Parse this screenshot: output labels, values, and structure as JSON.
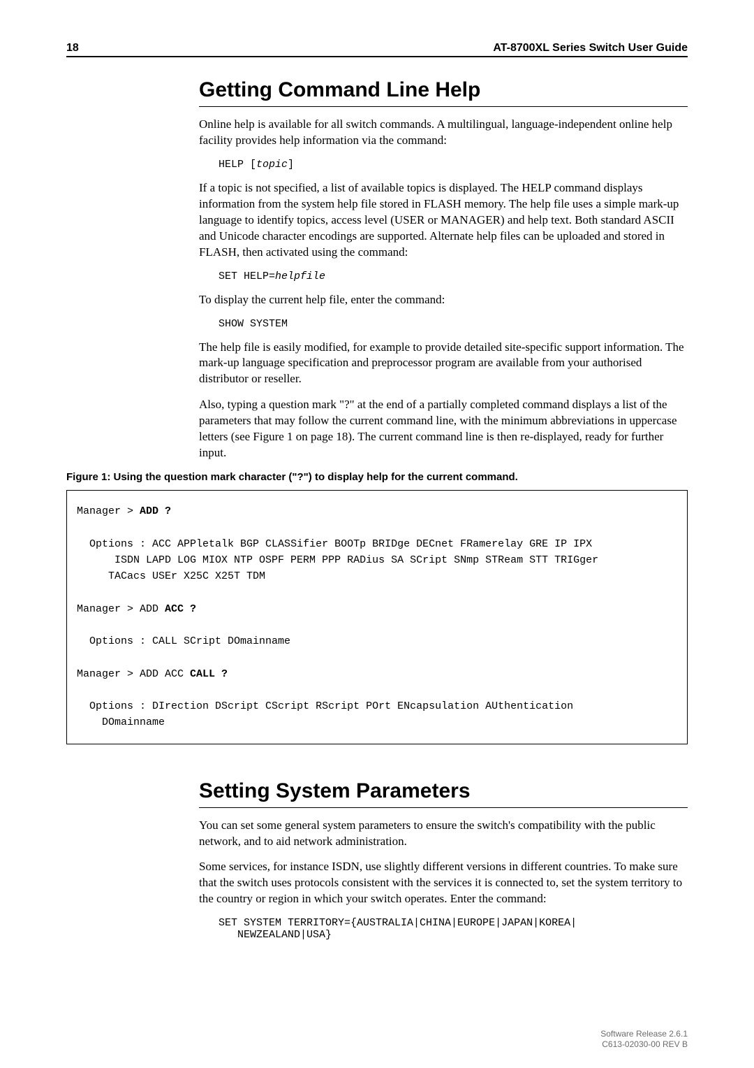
{
  "header": {
    "page_number": "18",
    "doc_title": "AT-8700XL Series Switch User Guide"
  },
  "section1": {
    "heading": "Getting Command Line Help",
    "p1": "Online help is available for all switch commands. A multilingual, language-independent online help facility provides help information via the command:",
    "code1_a": "HELP [",
    "code1_b": "topic",
    "code1_c": "]",
    "p2": "If a topic is not specified, a list of available topics is displayed. The HELP command displays information from the system help file stored in FLASH memory. The help file uses a simple mark-up language to identify topics, access level (USER or MANAGER) and help text. Both standard ASCII and Unicode character encodings are supported. Alternate help files can be uploaded and stored in FLASH, then activated using the command:",
    "code2_a": "SET HELP=",
    "code2_b": "helpfile",
    "p3": "To display the current help file, enter the command:",
    "code3": "SHOW SYSTEM",
    "p4": "The help file is easily modified, for example to provide detailed site-specific support information. The mark-up language specification and preprocessor program are available from your authorised distributor or reseller.",
    "p5": "Also, typing a question mark \"?\" at the end of a partially completed command displays a list of the parameters that may follow the current command line, with the minimum abbreviations in uppercase letters (see Figure 1 on page 18). The current command line is then re-displayed, ready for further input."
  },
  "figure": {
    "caption": "Figure 1: Using the question mark character (\"?\") to display help for the current command.",
    "line1a": "Manager > ",
    "line1b": "ADD ?",
    "opt1": "  Options : ACC APPletalk BGP CLASSifier BOOTp BRIDge DECnet FRamerelay GRE IP IPX\n      ISDN LAPD LOG MIOX NTP OSPF PERM PPP RADius SA SCript SNmp STReam STT TRIGger\n     TACacs USEr X25C X25T TDM",
    "line2a": "Manager > ADD ",
    "line2b": "ACC ?",
    "opt2": "  Options : CALL SCript DOmainname",
    "line3a": "Manager > ADD ACC ",
    "line3b": "CALL ?",
    "opt3": "  Options : DIrection DScript CScript RScript POrt ENcapsulation AUthentication\n    DOmainname"
  },
  "section2": {
    "heading": "Setting System Parameters",
    "p1": "You can set some general system parameters to ensure the switch's compatibility with the public network, and to aid network administration.",
    "p2": "Some services, for instance ISDN, use slightly different versions in different countries. To make sure that the switch uses protocols consistent with the services it is connected to, set the system territory to the country or region in which your switch operates. Enter the command:",
    "code1": "SET SYSTEM TERRITORY={AUSTRALIA|CHINA|EUROPE|JAPAN|KOREA|\n   NEWZEALAND|USA}"
  },
  "footer": {
    "line1": "Software Release 2.6.1",
    "line2": "C613-02030-00 REV B"
  }
}
